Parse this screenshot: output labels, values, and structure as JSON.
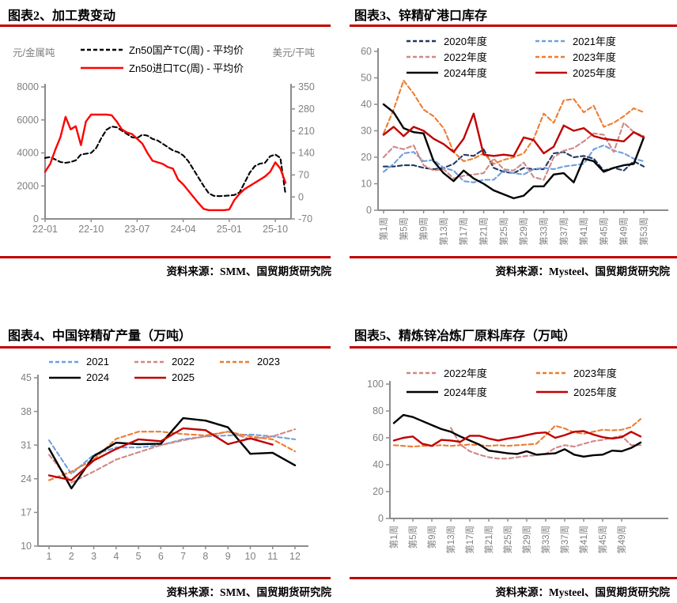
{
  "page": {
    "background": "#FFFFFF",
    "accent_rule_color": "#C00000",
    "axis_color": "#8C8C8C",
    "tick_text_color": "#808080"
  },
  "chart_data": [
    {
      "id": "chart2",
      "title": "图表2、加工费变动",
      "source": "资料来源：SMM、国贸期货研究院",
      "type": "line",
      "left_axis": {
        "label": "元/金属吨",
        "min": 0,
        "max": 8000,
        "ticks": [
          0,
          2000,
          4000,
          6000,
          8000
        ]
      },
      "right_axis": {
        "label": "美元/干吨",
        "min": -70,
        "max": 350,
        "ticks": [
          -70,
          0,
          70,
          140,
          210,
          280,
          350
        ]
      },
      "x_axis": {
        "domain": [
          0,
          47
        ],
        "start": 0,
        "step": 1,
        "tick_positions": [
          0,
          9,
          18,
          27,
          36,
          45
        ],
        "tick_labels": [
          "22-01",
          "22-10",
          "23-07",
          "24-04",
          "25-01",
          "25-10"
        ],
        "rotate_labels": false
      },
      "series": [
        {
          "name": "Zn50国产TC(周) - 平均价",
          "color": "#000000",
          "dash": true,
          "axis": "left",
          "values": [
            3700,
            3750,
            3600,
            3450,
            3400,
            3450,
            3550,
            3900,
            3950,
            4000,
            4300,
            4900,
            5400,
            5600,
            5550,
            5350,
            5150,
            4950,
            4900,
            5100,
            5050,
            4850,
            4750,
            4550,
            4350,
            4150,
            4050,
            3850,
            3500,
            3000,
            2500,
            2000,
            1550,
            1400,
            1380,
            1400,
            1420,
            1450,
            1600,
            2200,
            2800,
            3200,
            3350,
            3400,
            3800,
            3900,
            3700,
            1500
          ]
        },
        {
          "name": "Zn50进口TC(周) - 平均价",
          "color": "#FF0000",
          "dash": false,
          "axis": "right",
          "values": [
            80,
            105,
            150,
            190,
            255,
            215,
            225,
            165,
            240,
            262,
            262,
            262,
            262,
            260,
            240,
            215,
            205,
            200,
            185,
            170,
            140,
            115,
            110,
            105,
            95,
            90,
            55,
            40,
            20,
            0,
            -20,
            -38,
            -42,
            -42,
            -42,
            -42,
            -40,
            -10,
            10,
            25,
            35,
            45,
            55,
            65,
            80,
            110,
            90,
            45
          ]
        }
      ]
    },
    {
      "id": "chart3",
      "title": "图表3、锌精矿港口库存",
      "source": "资料来源：Mysteel、国贸期货研究院",
      "type": "line",
      "left_axis": {
        "min": 0,
        "max": 60,
        "ticks": [
          0,
          10,
          20,
          30,
          40,
          50,
          60
        ]
      },
      "x_axis": {
        "domain": [
          1,
          53
        ],
        "start": 1,
        "step": 2,
        "tick_positions": [
          1,
          5,
          9,
          13,
          17,
          21,
          25,
          29,
          33,
          37,
          41,
          45,
          49,
          53
        ],
        "tick_labels": [
          "第1周",
          "第5周",
          "第9周",
          "第13周",
          "第17周",
          "第21周",
          "第25周",
          "第29周",
          "第33周",
          "第37周",
          "第41周",
          "第45周",
          "第49周",
          "第53周"
        ],
        "rotate_labels": true
      },
      "series": [
        {
          "name": "2020年度",
          "color": "#1F3864",
          "dash": true,
          "axis": "left",
          "values": [
            16.5,
            16.5,
            17,
            17,
            16,
            15.5,
            16,
            17.5,
            21,
            20.5,
            23,
            16,
            14.5,
            14,
            16,
            15.5,
            15.5,
            21.5,
            22,
            20,
            20.5,
            19.5,
            15,
            16,
            15,
            18.5,
            16.5
          ]
        },
        {
          "name": "2021年度",
          "color": "#6F9FDC",
          "dash": true,
          "axis": "left",
          "values": [
            14.5,
            17.5,
            21.5,
            22,
            18.5,
            19,
            16,
            15,
            11,
            10.5,
            11.5,
            11.5,
            15,
            14,
            13.5,
            15.5,
            16,
            15.5,
            16.5,
            17,
            17.5,
            23,
            24.5,
            22.5,
            21.5,
            19.5,
            18.5
          ]
        },
        {
          "name": "2022年度",
          "color": "#D08886",
          "dash": true,
          "axis": "left",
          "values": [
            20,
            24,
            23,
            24.5,
            17,
            15,
            15.5,
            12,
            13,
            13.5,
            14,
            19.5,
            15.5,
            15,
            18,
            12.5,
            11.5,
            20,
            22.5,
            23.5,
            26,
            29,
            28.5,
            22,
            33,
            29.5,
            28
          ]
        },
        {
          "name": "2023年度",
          "color": "#ED7D31",
          "dash": true,
          "axis": "left",
          "values": [
            29,
            38,
            49,
            44,
            38,
            35.5,
            31,
            22,
            18.5,
            19.5,
            21.5,
            17.5,
            19,
            20,
            21.5,
            27,
            36.5,
            33,
            41.5,
            42,
            37,
            39.5,
            31.5,
            33,
            35.5,
            38.5,
            37
          ]
        },
        {
          "name": "2024年度",
          "color": "#000000",
          "dash": false,
          "axis": "left",
          "values": [
            40,
            37,
            31,
            29.5,
            29,
            18.5,
            14,
            11,
            15,
            12,
            10,
            7.5,
            6,
            4.5,
            5.5,
            9,
            9,
            13.5,
            14,
            10.5,
            19.5,
            18.5,
            14.5,
            16,
            17,
            17.5,
            27.5
          ]
        },
        {
          "name": "2025年度",
          "color": "#C00000",
          "dash": false,
          "axis": "left",
          "values": [
            28.5,
            31.5,
            28,
            31.5,
            30,
            27,
            25,
            22,
            27,
            36.5,
            21,
            20.5,
            21,
            20.5,
            27.5,
            26.5,
            21.5,
            24,
            32,
            30,
            31,
            28,
            27,
            26.5,
            26,
            29.5,
            27.5
          ]
        }
      ]
    },
    {
      "id": "chart4",
      "title": "图表4、中国锌精矿产量（万吨）",
      "source": "资料来源：SMM、国贸期货研究院",
      "type": "line",
      "left_axis": {
        "min": 10,
        "max": 45,
        "ticks": [
          10,
          17,
          24,
          31,
          38,
          45
        ]
      },
      "x_axis": {
        "domain": [
          1,
          12
        ],
        "start": 1,
        "step": 1,
        "tick_positions": [
          1,
          2,
          3,
          4,
          5,
          6,
          7,
          8,
          9,
          10,
          11,
          12
        ],
        "tick_labels": [
          "1",
          "2",
          "3",
          "4",
          "5",
          "6",
          "7",
          "8",
          "9",
          "10",
          "11",
          "12"
        ],
        "rotate_labels": false
      },
      "series": [
        {
          "name": "2021",
          "color": "#6F9FDC",
          "dash": true,
          "axis": "left",
          "values": [
            32,
            25,
            29,
            30.5,
            30.5,
            31,
            32.2,
            32.8,
            33,
            33.2,
            32.8,
            32.2
          ]
        },
        {
          "name": "2022",
          "color": "#D08886",
          "dash": true,
          "axis": "left",
          "values": [
            29,
            23.2,
            25.5,
            28,
            29.5,
            31,
            32,
            32.8,
            33.8,
            32.2,
            32.8,
            34.3
          ]
        },
        {
          "name": "2023",
          "color": "#ED7D31",
          "dash": true,
          "axis": "left",
          "values": [
            23.7,
            25.5,
            28,
            32.3,
            33.8,
            33.8,
            33.3,
            33,
            33.8,
            32.8,
            32.2,
            29.7
          ]
        },
        {
          "name": "2024",
          "color": "#000000",
          "dash": false,
          "axis": "left",
          "values": [
            30.3,
            22,
            28.7,
            31.5,
            31.2,
            31.3,
            36.6,
            36.1,
            34.7,
            29.2,
            29.4,
            26.8
          ]
        },
        {
          "name": "2025",
          "color": "#C00000",
          "dash": false,
          "axis": "left",
          "values": [
            24.7,
            23.7,
            27.8,
            30.2,
            32.2,
            31.8,
            34.5,
            34.1,
            31.2,
            32.4,
            31.1,
            null
          ]
        }
      ]
    },
    {
      "id": "chart5",
      "title": "图表5、精炼锌冶炼厂原料库存（万吨）",
      "source": "资料来源：Mysteel、国贸期货研究院",
      "type": "line",
      "left_axis": {
        "min": 0,
        "max": 100,
        "ticks": [
          0,
          20,
          40,
          60,
          80,
          100
        ]
      },
      "x_axis": {
        "domain": [
          1,
          53
        ],
        "start": 1,
        "step": 2,
        "tick_positions": [
          1,
          5,
          9,
          13,
          17,
          21,
          25,
          29,
          33,
          37,
          41,
          45,
          49
        ],
        "tick_labels": [
          "第1周",
          "第5周",
          "第9周",
          "第13周",
          "第17周",
          "第21周",
          "第25周",
          "第29周",
          "第33周",
          "第37周",
          "第41周",
          "第45周",
          "第49周"
        ],
        "rotate_labels": true
      },
      "series": [
        {
          "name": "2022年度",
          "color": "#D08886",
          "dash": true,
          "axis": "left",
          "values": [
            null,
            null,
            null,
            null,
            null,
            null,
            67.5,
            55,
            50,
            47.5,
            45.5,
            44.5,
            44.5,
            45.5,
            46.5,
            47,
            48,
            52.5,
            54.5,
            53.5,
            55.5,
            57.5,
            58.5,
            60,
            61.5,
            54.5,
            54.5
          ]
        },
        {
          "name": "2023年度",
          "color": "#ED7D31",
          "dash": true,
          "axis": "left",
          "values": [
            54.5,
            54,
            53.5,
            54,
            54,
            54.5,
            54,
            54.5,
            55,
            54.5,
            54,
            54.5,
            54,
            54.5,
            55,
            55.5,
            62,
            69,
            67,
            64,
            63,
            64.5,
            66,
            65.5,
            66,
            68,
            74
          ]
        },
        {
          "name": "2024年度",
          "color": "#000000",
          "dash": false,
          "axis": "left",
          "values": [
            71,
            77,
            75.5,
            72.5,
            69.5,
            66.5,
            64.5,
            61,
            58,
            55,
            50.5,
            49.5,
            48.5,
            48,
            50,
            47.5,
            48,
            48.5,
            51.5,
            47.5,
            46,
            47,
            47.5,
            50.5,
            50,
            52.5,
            56.5
          ]
        },
        {
          "name": "2025年度",
          "color": "#C00000",
          "dash": false,
          "axis": "left",
          "values": [
            58,
            60,
            61,
            55.5,
            54,
            58.5,
            58,
            57,
            61.5,
            61.5,
            59.5,
            58,
            59.5,
            60.5,
            62,
            63.5,
            64,
            60,
            62,
            64.5,
            65,
            62.5,
            60.5,
            59.5,
            60.5,
            64.5,
            61
          ]
        }
      ]
    }
  ]
}
